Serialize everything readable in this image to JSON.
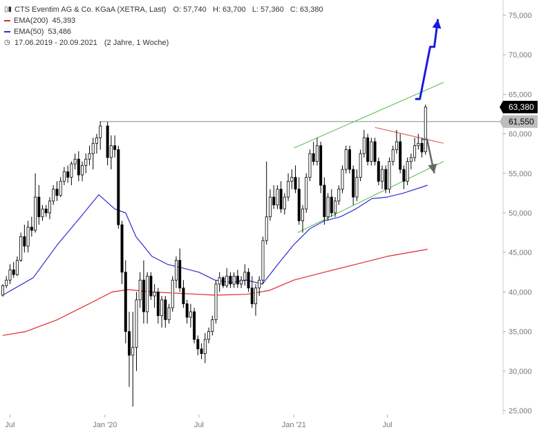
{
  "header": {
    "instrument": "CTS Eventim AG & Co. KGaA (XETRA, Last)",
    "ohlc": "O: 57,740   H: 63,700   L: 57,360   C: 63,380",
    "ema200_label": "EMA(200)",
    "ema200_value": "45,393",
    "ema50_label": "EMA(50)",
    "ema50_value": "53,486",
    "period": "17.06.2019 - 20.09.2021",
    "span": "(2 Jahre, 1 Woche)"
  },
  "colors": {
    "candle": "#000000",
    "ema200": "#e3262a",
    "ema50": "#2a2ad6",
    "channel": "#4db84d",
    "resistance": "#e05050",
    "hline": "#888888",
    "arrow_up": "#1a1ae0",
    "arrow_down": "#666666",
    "last_tag_bg": "#000000",
    "level_tag_bg": "#bdbdbd"
  },
  "chart_data": {
    "type": "candlestick",
    "x_range": [
      "2019-06-17",
      "2021-09-20"
    ],
    "y_range": [
      25000,
      75000
    ],
    "y_ticks": [
      25000,
      30000,
      35000,
      40000,
      45000,
      50000,
      55000,
      60000,
      65000,
      70000,
      75000
    ],
    "y_tick_labels": [
      "25,000",
      "30,000",
      "35,000",
      "40,000",
      "45,000",
      "50,000",
      "55,000",
      "60,000",
      "65,000",
      "70,000",
      "75,000"
    ],
    "x_ticks": [
      {
        "date": "2019-07-01",
        "label": "Jul"
      },
      {
        "date": "2020-01-01",
        "label": "Jan '20"
      },
      {
        "date": "2020-07-01",
        "label": "Jul"
      },
      {
        "date": "2021-01-01",
        "label": "Jan '21"
      },
      {
        "date": "2021-07-01",
        "label": "Jul"
      }
    ],
    "last_price": {
      "value": 63380,
      "label": "63,380"
    },
    "level": {
      "value": 61550,
      "label": "61,550"
    },
    "candles": [
      [
        "2019-06-17",
        39.6,
        41.0,
        39.4,
        40.8
      ],
      [
        "2019-06-24",
        40.8,
        42.0,
        40.5,
        41.5
      ],
      [
        "2019-07-01",
        41.5,
        43.5,
        41.0,
        42.8
      ],
      [
        "2019-07-08",
        42.8,
        43.8,
        41.8,
        42.2
      ],
      [
        "2019-07-15",
        42.2,
        44.5,
        42.0,
        44.0
      ],
      [
        "2019-07-22",
        44.0,
        47.5,
        43.8,
        47.0
      ],
      [
        "2019-07-29",
        47.0,
        48.5,
        45.0,
        45.8
      ],
      [
        "2019-08-05",
        45.8,
        49.0,
        45.0,
        48.2
      ],
      [
        "2019-08-12",
        48.2,
        49.5,
        47.0,
        47.8
      ],
      [
        "2019-08-19",
        47.8,
        55.0,
        47.5,
        52.0
      ],
      [
        "2019-08-26",
        52.0,
        53.5,
        48.5,
        49.5
      ],
      [
        "2019-09-02",
        49.5,
        51.0,
        49.0,
        50.5
      ],
      [
        "2019-09-09",
        50.5,
        51.0,
        49.5,
        50.0
      ],
      [
        "2019-09-16",
        50.0,
        52.0,
        49.2,
        51.5
      ],
      [
        "2019-09-23",
        51.5,
        53.5,
        51.0,
        53.0
      ],
      [
        "2019-09-30",
        53.0,
        54.0,
        51.5,
        52.2
      ],
      [
        "2019-10-07",
        52.2,
        54.5,
        52.0,
        54.0
      ],
      [
        "2019-10-14",
        54.0,
        55.8,
        53.5,
        55.2
      ],
      [
        "2019-10-21",
        55.2,
        56.0,
        53.8,
        54.5
      ],
      [
        "2019-10-28",
        54.5,
        56.5,
        53.5,
        56.2
      ],
      [
        "2019-11-04",
        56.2,
        57.5,
        55.5,
        56.8
      ],
      [
        "2019-11-11",
        56.8,
        57.8,
        54.0,
        54.8
      ],
      [
        "2019-11-18",
        54.8,
        56.5,
        54.0,
        56.0
      ],
      [
        "2019-11-25",
        56.0,
        57.5,
        55.0,
        56.8
      ],
      [
        "2019-12-02",
        56.8,
        58.5,
        56.0,
        57.5
      ],
      [
        "2019-12-09",
        57.5,
        59.5,
        55.5,
        58.8
      ],
      [
        "2019-12-16",
        58.8,
        60.0,
        57.5,
        59.5
      ],
      [
        "2019-12-23",
        59.5,
        61.6,
        58.0,
        61.0
      ],
      [
        "2020-01-06",
        61.0,
        61.5,
        56.0,
        57.0
      ],
      [
        "2020-01-13",
        57.0,
        59.8,
        55.5,
        58.5
      ],
      [
        "2020-01-20",
        58.5,
        59.8,
        57.0,
        58.0
      ],
      [
        "2020-01-27",
        58.0,
        58.5,
        48.0,
        48.5
      ],
      [
        "2020-02-03",
        48.5,
        49.0,
        41.0,
        42.5
      ],
      [
        "2020-02-10",
        42.5,
        44.0,
        33.5,
        35.0
      ],
      [
        "2020-02-17",
        35.0,
        37.5,
        28.0,
        32.0
      ],
      [
        "2020-02-24",
        32.0,
        37.5,
        25.5,
        33.0
      ],
      [
        "2020-03-02",
        33.0,
        40.0,
        30.0,
        39.0
      ],
      [
        "2020-03-09",
        39.0,
        42.5,
        38.0,
        41.5
      ],
      [
        "2020-03-16",
        41.5,
        44.0,
        36.0,
        37.5
      ],
      [
        "2020-03-23",
        37.5,
        42.5,
        36.0,
        42.0
      ],
      [
        "2020-03-30",
        42.0,
        42.5,
        39.0,
        39.5
      ],
      [
        "2020-04-06",
        39.5,
        41.0,
        38.0,
        40.0
      ],
      [
        "2020-04-13",
        40.0,
        40.5,
        36.0,
        37.0
      ],
      [
        "2020-04-20",
        37.0,
        39.5,
        35.5,
        39.0
      ],
      [
        "2020-04-27",
        39.0,
        39.5,
        35.5,
        36.5
      ],
      [
        "2020-05-04",
        36.5,
        38.5,
        36.0,
        38.0
      ],
      [
        "2020-05-11",
        38.0,
        42.0,
        37.5,
        41.5
      ],
      [
        "2020-05-18",
        41.5,
        44.5,
        40.5,
        44.0
      ],
      [
        "2020-05-25",
        44.0,
        45.5,
        40.0,
        40.5
      ],
      [
        "2020-06-01",
        40.5,
        41.5,
        38.0,
        38.5
      ],
      [
        "2020-06-08",
        38.5,
        39.0,
        36.0,
        36.8
      ],
      [
        "2020-06-15",
        36.8,
        38.5,
        35.5,
        37.5
      ],
      [
        "2020-06-22",
        37.5,
        38.0,
        33.5,
        34.0
      ],
      [
        "2020-06-29",
        34.0,
        34.5,
        32.0,
        32.8
      ],
      [
        "2020-07-06",
        32.8,
        33.5,
        31.5,
        32.2
      ],
      [
        "2020-07-13",
        32.2,
        34.8,
        31.0,
        34.0
      ],
      [
        "2020-07-20",
        34.0,
        35.5,
        33.5,
        35.0
      ],
      [
        "2020-07-27",
        35.0,
        37.0,
        34.5,
        36.5
      ],
      [
        "2020-08-03",
        36.5,
        41.5,
        36.0,
        41.0
      ],
      [
        "2020-08-10",
        41.0,
        42.5,
        40.0,
        41.8
      ],
      [
        "2020-08-17",
        41.8,
        42.0,
        40.5,
        40.8
      ],
      [
        "2020-08-24",
        40.8,
        43.0,
        40.5,
        42.0
      ],
      [
        "2020-08-31",
        42.0,
        42.5,
        40.5,
        41.0
      ],
      [
        "2020-09-07",
        41.0,
        42.5,
        40.5,
        42.0
      ],
      [
        "2020-09-14",
        42.0,
        42.8,
        40.5,
        41.0
      ],
      [
        "2020-09-21",
        41.0,
        42.0,
        40.5,
        41.5
      ],
      [
        "2020-09-28",
        41.5,
        43.5,
        40.8,
        42.5
      ],
      [
        "2020-10-05",
        42.5,
        43.0,
        40.0,
        40.5
      ],
      [
        "2020-10-12",
        40.5,
        42.0,
        38.0,
        38.5
      ],
      [
        "2020-10-19",
        38.5,
        41.0,
        37.0,
        40.5
      ],
      [
        "2020-10-26",
        40.5,
        42.0,
        39.5,
        41.5
      ],
      [
        "2020-11-02",
        41.5,
        47.0,
        41.0,
        46.5
      ],
      [
        "2020-11-09",
        46.5,
        56.5,
        46.0,
        49.5
      ],
      [
        "2020-11-16",
        49.5,
        53.0,
        49.0,
        52.0
      ],
      [
        "2020-11-23",
        52.0,
        53.5,
        50.5,
        51.0
      ],
      [
        "2020-11-30",
        51.0,
        53.5,
        50.5,
        53.0
      ],
      [
        "2020-12-07",
        53.0,
        54.0,
        50.0,
        50.5
      ],
      [
        "2020-12-14",
        50.5,
        52.5,
        49.8,
        52.0
      ],
      [
        "2020-12-21",
        52.0,
        55.0,
        51.5,
        54.0
      ],
      [
        "2020-12-28",
        54.0,
        55.5,
        53.0,
        54.5
      ],
      [
        "2021-01-04",
        54.5,
        56.0,
        52.5,
        53.0
      ],
      [
        "2021-01-11",
        53.0,
        54.5,
        48.5,
        49.0
      ],
      [
        "2021-01-18",
        49.0,
        51.0,
        47.5,
        50.5
      ],
      [
        "2021-01-25",
        50.5,
        55.0,
        50.0,
        54.5
      ],
      [
        "2021-02-01",
        54.5,
        58.0,
        54.0,
        57.5
      ],
      [
        "2021-02-08",
        57.5,
        59.0,
        56.0,
        56.5
      ],
      [
        "2021-02-15",
        56.5,
        59.5,
        56.0,
        58.5
      ],
      [
        "2021-02-22",
        58.5,
        59.0,
        52.5,
        53.5
      ],
      [
        "2021-03-01",
        53.5,
        54.5,
        48.5,
        49.5
      ],
      [
        "2021-03-08",
        49.5,
        52.5,
        49.0,
        52.0
      ],
      [
        "2021-03-15",
        52.0,
        53.0,
        49.5,
        50.0
      ],
      [
        "2021-03-22",
        50.0,
        52.0,
        49.5,
        51.5
      ],
      [
        "2021-03-29",
        51.5,
        53.5,
        51.0,
        53.0
      ],
      [
        "2021-04-05",
        53.0,
        56.0,
        52.5,
        55.5
      ],
      [
        "2021-04-12",
        55.5,
        58.5,
        55.0,
        58.0
      ],
      [
        "2021-04-19",
        58.0,
        58.5,
        55.0,
        55.5
      ],
      [
        "2021-04-26",
        55.5,
        56.0,
        51.0,
        52.0
      ],
      [
        "2021-05-03",
        52.0,
        55.5,
        51.5,
        54.5
      ],
      [
        "2021-05-10",
        54.5,
        58.0,
        54.0,
        57.5
      ],
      [
        "2021-05-17",
        57.5,
        60.5,
        57.0,
        59.5
      ],
      [
        "2021-05-24",
        59.5,
        60.0,
        56.0,
        56.5
      ],
      [
        "2021-05-31",
        56.5,
        59.5,
        56.0,
        59.0
      ],
      [
        "2021-06-07",
        59.0,
        59.5,
        56.0,
        56.5
      ],
      [
        "2021-06-14",
        56.5,
        57.0,
        53.5,
        54.0
      ],
      [
        "2021-06-21",
        54.0,
        56.0,
        53.0,
        55.5
      ],
      [
        "2021-06-28",
        55.5,
        56.0,
        52.5,
        53.0
      ],
      [
        "2021-07-05",
        53.0,
        57.0,
        52.5,
        56.5
      ],
      [
        "2021-07-12",
        56.5,
        58.5,
        56.0,
        58.0
      ],
      [
        "2021-07-19",
        58.0,
        60.5,
        57.5,
        59.0
      ],
      [
        "2021-07-26",
        59.0,
        60.0,
        55.0,
        55.5
      ],
      [
        "2021-08-02",
        55.5,
        56.0,
        53.0,
        54.0
      ],
      [
        "2021-08-09",
        54.0,
        57.0,
        53.5,
        56.5
      ],
      [
        "2021-08-16",
        56.5,
        57.5,
        55.5,
        57.0
      ],
      [
        "2021-08-23",
        57.0,
        59.5,
        56.5,
        58.5
      ],
      [
        "2021-08-30",
        58.5,
        60.0,
        58.0,
        58.8
      ],
      [
        "2021-09-06",
        58.8,
        59.5,
        57.0,
        57.7
      ],
      [
        "2021-09-13",
        57.74,
        63.7,
        57.36,
        63.38
      ]
    ],
    "ema50": [
      [
        "2019-06-17",
        39.6
      ],
      [
        "2019-08-15",
        41.8
      ],
      [
        "2019-10-01",
        46.0
      ],
      [
        "2019-11-15",
        49.5
      ],
      [
        "2019-12-20",
        52.3
      ],
      [
        "2020-01-20",
        50.5
      ],
      [
        "2020-02-10",
        50.0
      ],
      [
        "2020-03-01",
        47.0
      ],
      [
        "2020-04-01",
        44.5
      ],
      [
        "2020-05-01",
        43.5
      ],
      [
        "2020-06-01",
        43.0
      ],
      [
        "2020-07-01",
        42.5
      ],
      [
        "2020-08-01",
        41.5
      ],
      [
        "2020-09-01",
        41.2
      ],
      [
        "2020-10-01",
        41.5
      ],
      [
        "2020-11-01",
        41.0
      ],
      [
        "2020-12-01",
        43.5
      ],
      [
        "2021-01-01",
        46.0
      ],
      [
        "2021-02-01",
        48.0
      ],
      [
        "2021-03-01",
        49.0
      ],
      [
        "2021-04-01",
        49.5
      ],
      [
        "2021-05-01",
        50.5
      ],
      [
        "2021-06-01",
        51.8
      ],
      [
        "2021-07-01",
        52.0
      ],
      [
        "2021-08-01",
        52.5
      ],
      [
        "2021-09-17",
        53.5
      ]
    ],
    "ema200": [
      [
        "2019-06-17",
        34.5
      ],
      [
        "2019-08-01",
        35.0
      ],
      [
        "2019-10-01",
        36.5
      ],
      [
        "2019-12-01",
        38.5
      ],
      [
        "2020-01-15",
        40.0
      ],
      [
        "2020-02-15",
        40.3
      ],
      [
        "2020-04-01",
        40.0
      ],
      [
        "2020-06-01",
        39.8
      ],
      [
        "2020-08-01",
        39.6
      ],
      [
        "2020-10-01",
        39.7
      ],
      [
        "2020-11-15",
        40.2
      ],
      [
        "2021-01-01",
        41.5
      ],
      [
        "2021-03-01",
        42.5
      ],
      [
        "2021-05-01",
        43.5
      ],
      [
        "2021-07-01",
        44.5
      ],
      [
        "2021-09-17",
        45.4
      ]
    ],
    "annotations": {
      "horizontal_line": {
        "from": "2019-12-23",
        "to": "2021-09-27",
        "value": 61.55
      },
      "channel_upper": [
        [
          "2021-01-01",
          58.2
        ],
        [
          "2021-10-18",
          66.5
        ]
      ],
      "channel_lower": [
        [
          "2021-01-08",
          47.5
        ],
        [
          "2021-10-18",
          56.5
        ]
      ],
      "resistance": [
        [
          "2021-06-07",
          60.8
        ],
        [
          "2021-10-18",
          58.8
        ]
      ],
      "arrow_up": [
        [
          "2021-08-24",
          64.4
        ],
        [
          "2021-09-02",
          64.4
        ],
        [
          "2021-09-22",
          71.0
        ],
        [
          "2021-09-30",
          71.0
        ],
        [
          "2021-10-07",
          74.5
        ]
      ],
      "arrow_down": [
        [
          "2021-09-07",
          59.3
        ],
        [
          "2021-09-16",
          59.3
        ],
        [
          "2021-09-30",
          55.0
        ]
      ]
    }
  }
}
